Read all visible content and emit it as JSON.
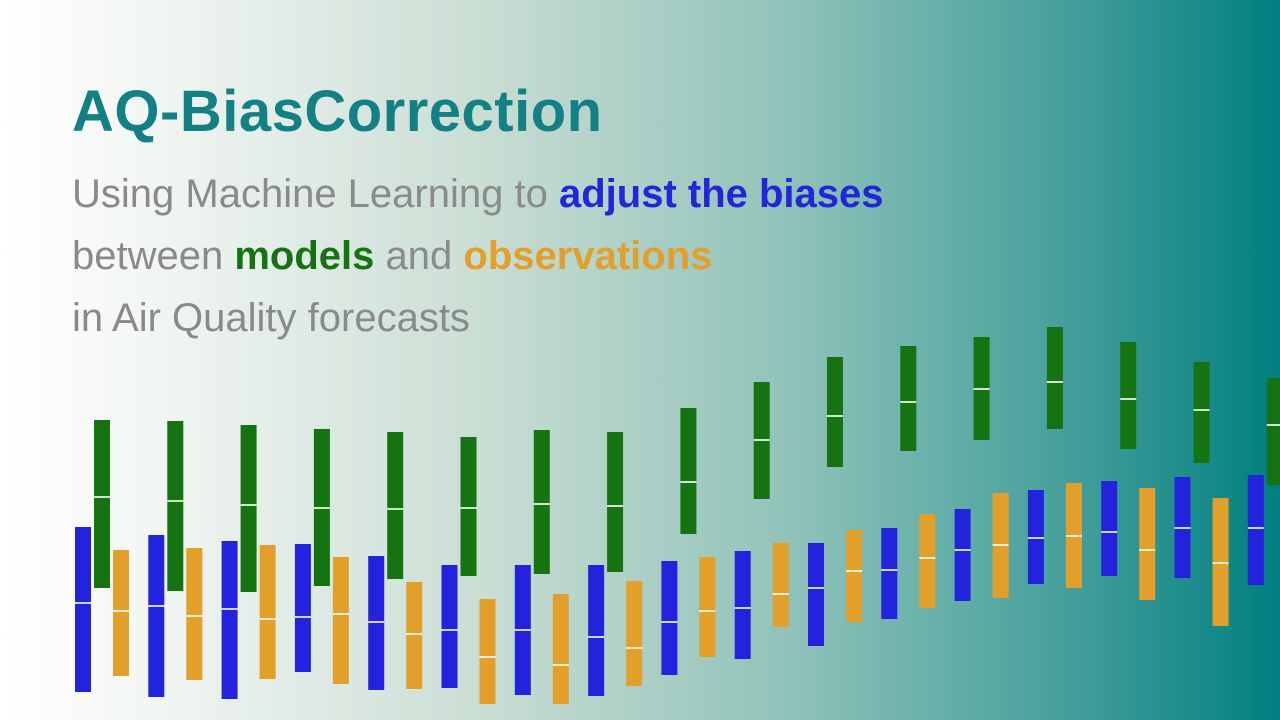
{
  "title": "AQ-BiasCorrection",
  "subtitle": {
    "lines": [
      [
        "Using Machine Learning to",
        "adjust the biases"
      ],
      [
        "between",
        "models",
        "and",
        "observations"
      ],
      [
        "in Air Quality forecasts"
      ]
    ]
  }
}
